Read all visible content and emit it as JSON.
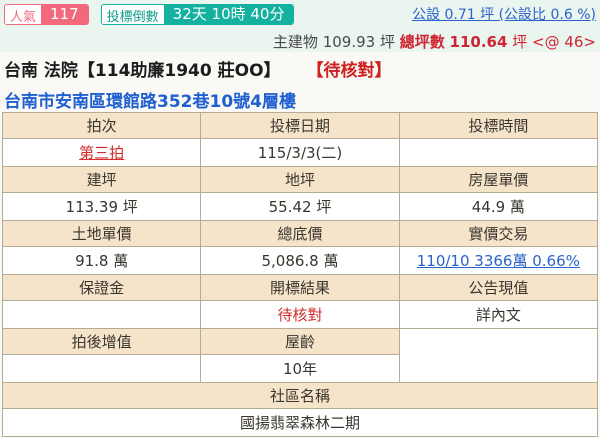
{
  "topbar": {
    "popularity": {
      "label": "人氣",
      "value": "117"
    },
    "countdown": {
      "label": "投標倒數",
      "value": "32天 10時 40分"
    },
    "public_facility_link": "公設 0.71 坪 (公設比 0.6 %)",
    "main_building": "主建物 109.93 坪",
    "total_area_label": "總坪數",
    "total_area_value": "110.64",
    "total_area_unit": "坪",
    "total_area_suffix": "<@ 46>"
  },
  "header": {
    "title": "台南 法院【114助廉1940 莊OO】",
    "status": "【待核對】",
    "address": "台南市安南區環館路352巷10號4層樓"
  },
  "table": {
    "groups": [
      {
        "headers": [
          "拍次",
          "投標日期",
          "投標時間"
        ],
        "values": [
          "第三拍",
          "115/3/3(二)",
          ""
        ]
      },
      {
        "headers": [
          "建坪",
          "地坪",
          "房屋單價"
        ],
        "values": [
          "113.39 坪",
          "55.42 坪",
          "44.9 萬"
        ]
      },
      {
        "headers": [
          "土地單價",
          "總底價",
          "實價交易"
        ],
        "values": [
          "91.8 萬",
          "5,086.8 萬",
          "110/10 3366萬 0.66%"
        ]
      },
      {
        "headers": [
          "保證金",
          "開標結果",
          "公告現值"
        ],
        "values": [
          "",
          "待核對",
          "詳內文"
        ]
      },
      {
        "headers": [
          "拍後增值",
          "屋齡"
        ],
        "values": [
          "",
          "10年"
        ]
      }
    ],
    "community": {
      "header": "社區名稱",
      "value": "國揚翡翠森林二期"
    }
  },
  "colors": {
    "badge_pink": "#f3697c",
    "badge_teal": "#14b0a0",
    "band_green": "#e9f5ee",
    "header_beige": "#f5e3ca",
    "table_border": "#b3ab95",
    "alert_red": "#d22c2c",
    "link_blue": "#2a63c9",
    "address_blue": "#1f5fd0"
  }
}
